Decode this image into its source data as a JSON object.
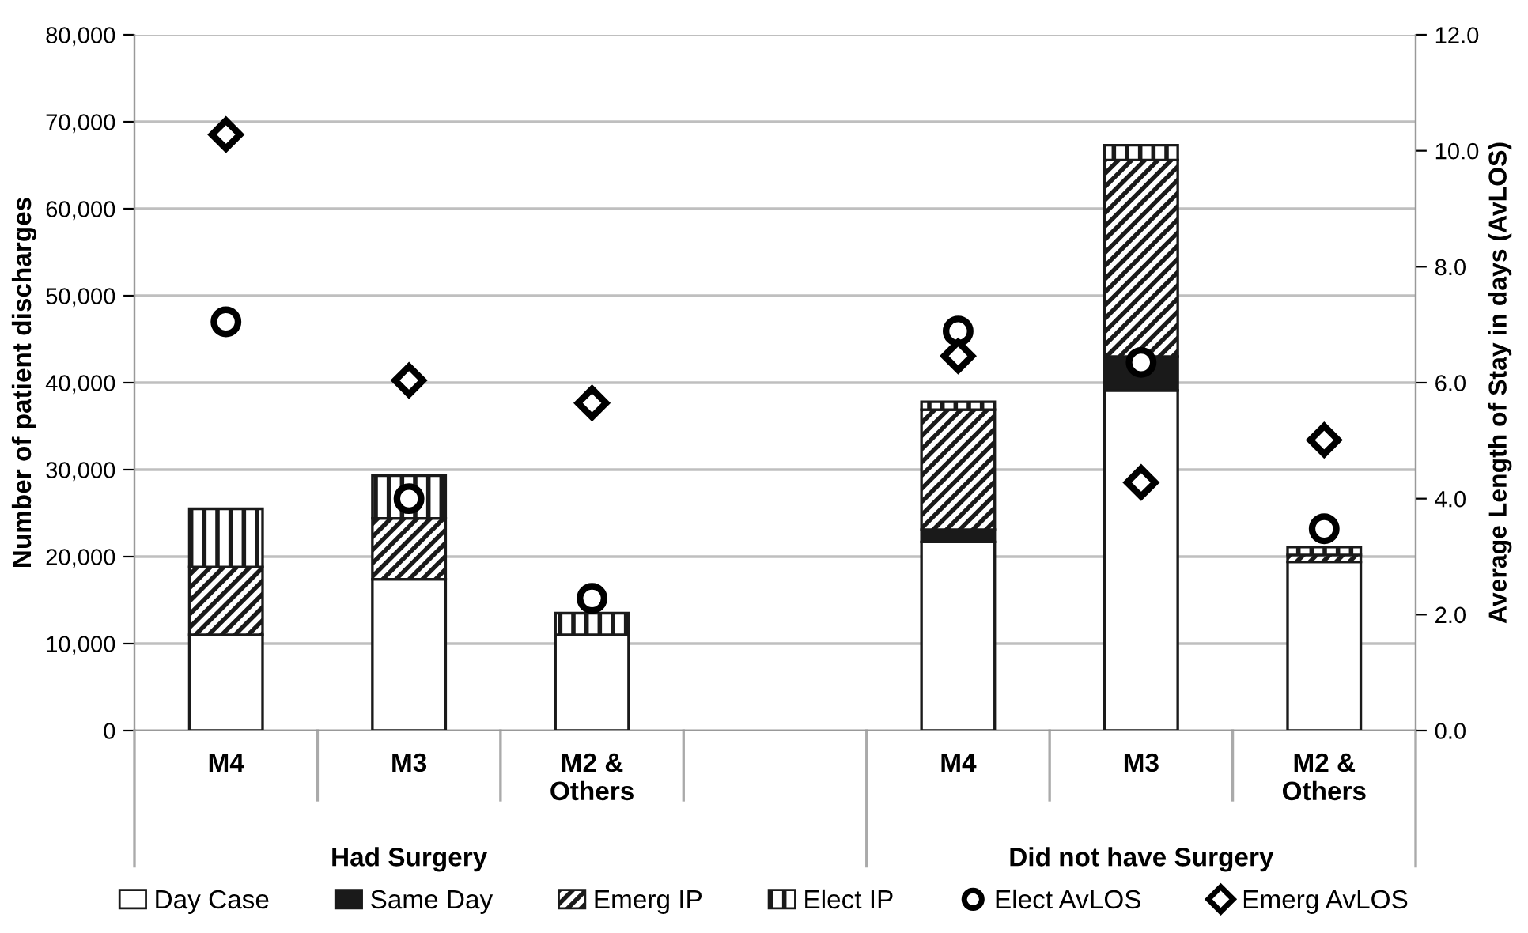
{
  "chart_data": {
    "type": "bar",
    "stacked": true,
    "categories": [
      "M4",
      "M3",
      "M2 &\nOthers",
      null,
      "M4",
      "M3",
      "M2 &\nOthers"
    ],
    "ylabel": "Number of patient discharges",
    "y2label": "Average Length of Stay in days (AvLOS)",
    "annotations": [
      "Had Surgery",
      "Did not have Surgery"
    ],
    "series": [
      {
        "name": "Day Case",
        "color": "#ffffff",
        "values": [
          11000,
          17400,
          11000,
          null,
          21700,
          39100,
          19400
        ]
      },
      {
        "name": "Same Day",
        "color": "#1a1a1a",
        "values": [
          0,
          null,
          null,
          null,
          1400,
          3900,
          null
        ]
      },
      {
        "name": "Emerg IP",
        "color": "#1a1a1a",
        "values": [
          7800,
          7000,
          0,
          null,
          13800,
          22600,
          800
        ]
      },
      {
        "name": "Elect IP",
        "color": "#1a1a1a",
        "values": [
          6700,
          4900,
          2500,
          null,
          900,
          1700,
          900
        ]
      },
      {
        "name": "Elect AvLOS",
        "type": "scatter",
        "axis": "y2",
        "marker": "circle",
        "color": "#000000",
        "values": [
          7.05,
          4.0,
          2.28,
          null,
          6.89,
          6.35,
          3.48
        ]
      },
      {
        "name": "Emerg AvLOS",
        "type": "scatter",
        "axis": "y2",
        "marker": "diamond",
        "color": "#000000",
        "values": [
          10.28,
          6.04,
          5.65,
          null,
          6.46,
          4.28,
          5.01
        ]
      }
    ],
    "ylim": [
      0,
      80000
    ],
    "yticks": [
      0,
      {
        "value": 10000,
        "label": "10,000"
      },
      {
        "value": 20000,
        "label": "20,000"
      },
      {
        "value": 30000,
        "label": "30,000"
      },
      {
        "value": 40000,
        "label": "40,000"
      },
      {
        "value": 50000,
        "label": "50,000"
      },
      {
        "value": 60000,
        "label": "60,000"
      },
      {
        "value": 70000,
        "label": "70,000"
      },
      {
        "value": 80000,
        "label": "80,000"
      }
    ],
    "y2lim": [
      0,
      12
    ],
    "y2ticks": [
      {
        "value": 0,
        "label": "0.0"
      },
      {
        "value": 2,
        "label": "2.0"
      },
      {
        "value": 4,
        "label": "4.0"
      },
      {
        "value": 6,
        "label": "6.0"
      },
      {
        "value": 8,
        "label": "8.0"
      },
      {
        "value": 10,
        "label": "10.0"
      },
      {
        "value": 12,
        "label": "12.0"
      }
    ],
    "grid": "y",
    "legend": "bottom"
  }
}
